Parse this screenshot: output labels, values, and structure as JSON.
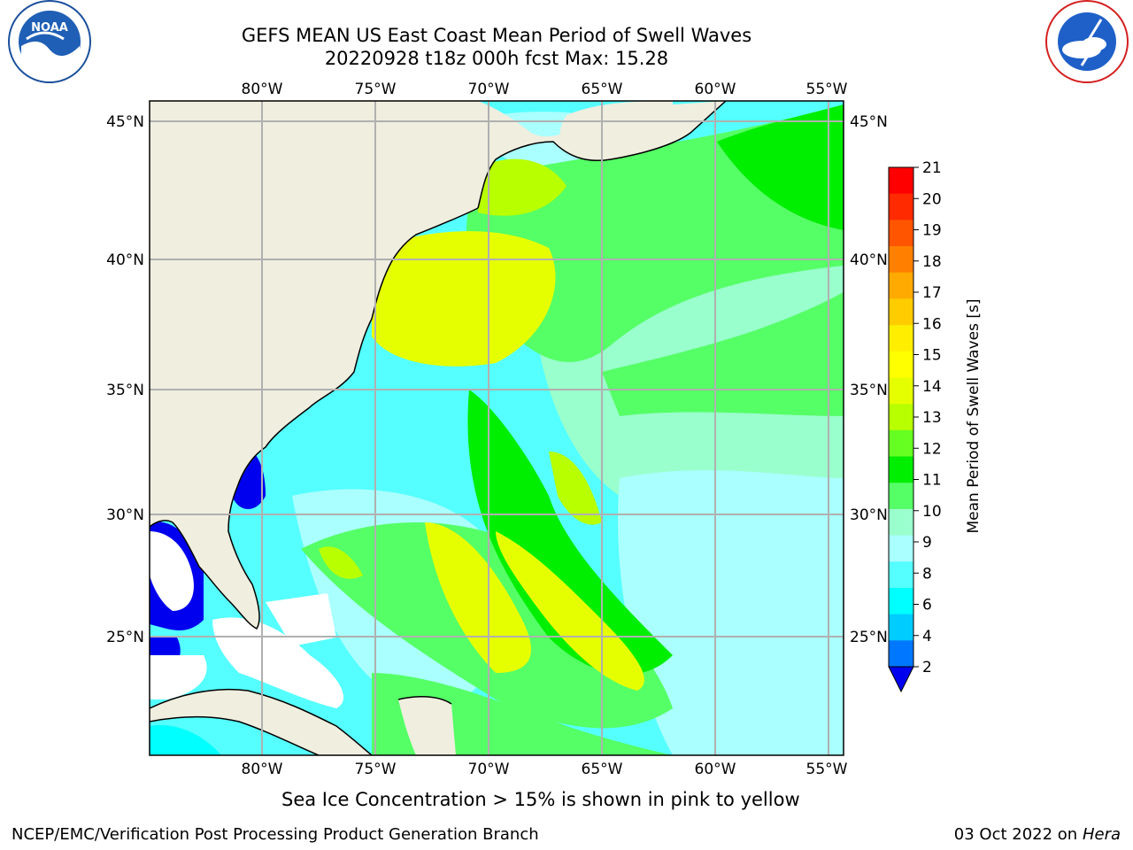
{
  "title": {
    "line1": "GEFS MEAN US East Coast Mean Period of Swell Waves",
    "line2": "20220928 t18z 000h fcst   Max: 15.28"
  },
  "logos": {
    "noaa_text": "NOAA",
    "noaa_ring": "NATIONAL OCEANIC AND ATMOSPHERIC ADMINISTRATION",
    "noaa_ring_bottom": "U.S. DEPARTMENT OF COMMERCE",
    "nws_ring": "NATIONAL WEATHER SERVICE"
  },
  "map": {
    "lon_labels": [
      "80°W",
      "75°W",
      "70°W",
      "65°W",
      "60°W",
      "55°W"
    ],
    "lat_labels": [
      "45°N",
      "40°N",
      "35°N",
      "30°N",
      "25°N"
    ],
    "colors": {
      "land": "#efeedf",
      "ocean_base": "#55ffff",
      "grid": "#b0b0b0",
      "coast": "#000000"
    }
  },
  "colorbar": {
    "label": "Mean Period of Swell Waves [s]",
    "ticks": [
      "21",
      "20",
      "19",
      "18",
      "17",
      "16",
      "15",
      "14",
      "13",
      "12",
      "11",
      "10",
      "9",
      "8",
      "6",
      "4",
      "2"
    ],
    "colors_top_to_bottom": [
      "#ff0000",
      "#ff2a00",
      "#ff5500",
      "#ff8000",
      "#ffaa00",
      "#ffcc00",
      "#ffee00",
      "#ffff00",
      "#e6ff00",
      "#b8ff00",
      "#66ff22",
      "#00ee00",
      "#55ff66",
      "#99ffcc",
      "#aaffff",
      "#55ffff",
      "#00ffff",
      "#00ccff",
      "#0077ff"
    ],
    "under_color": "#0000ee"
  },
  "notes": {
    "sea_ice": "Sea Ice Concentration > 15% is shown in pink to yellow"
  },
  "footer": {
    "left": "NCEP/EMC/Verification Post Processing Product Generation Branch",
    "right_date": "03 Oct 2022 on ",
    "right_host": "Hera"
  }
}
